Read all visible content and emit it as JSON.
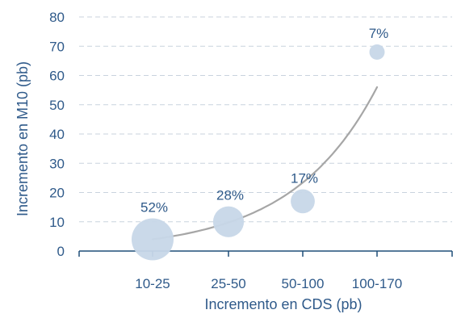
{
  "chart_data": {
    "type": "scatter",
    "xlabel": "Incremento en CDS  (pb)",
    "ylabel": "Incremento en M10 (pb)",
    "categories": [
      "10-25",
      "25-50",
      "50-100",
      "100-170"
    ],
    "ylim": [
      0,
      80
    ],
    "yticks": [
      0,
      10,
      20,
      30,
      40,
      50,
      60,
      70,
      80
    ],
    "grid": "horizontal-dashed",
    "series": [
      {
        "type": "bubble",
        "values": [
          4,
          10,
          17,
          68
        ],
        "share_labels": [
          "52%",
          "28%",
          "17%",
          "7%"
        ],
        "share_values": [
          52,
          28,
          17,
          7
        ],
        "color": "#c7d7e8"
      },
      {
        "type": "trend-line",
        "shape": "exponential",
        "y_start": 4,
        "y_end": 56,
        "color": "#a6a6a6"
      }
    ],
    "axis_color": "#1f4e79",
    "text_color": "#2f5a8a",
    "grid_color": "#c9d3de"
  }
}
